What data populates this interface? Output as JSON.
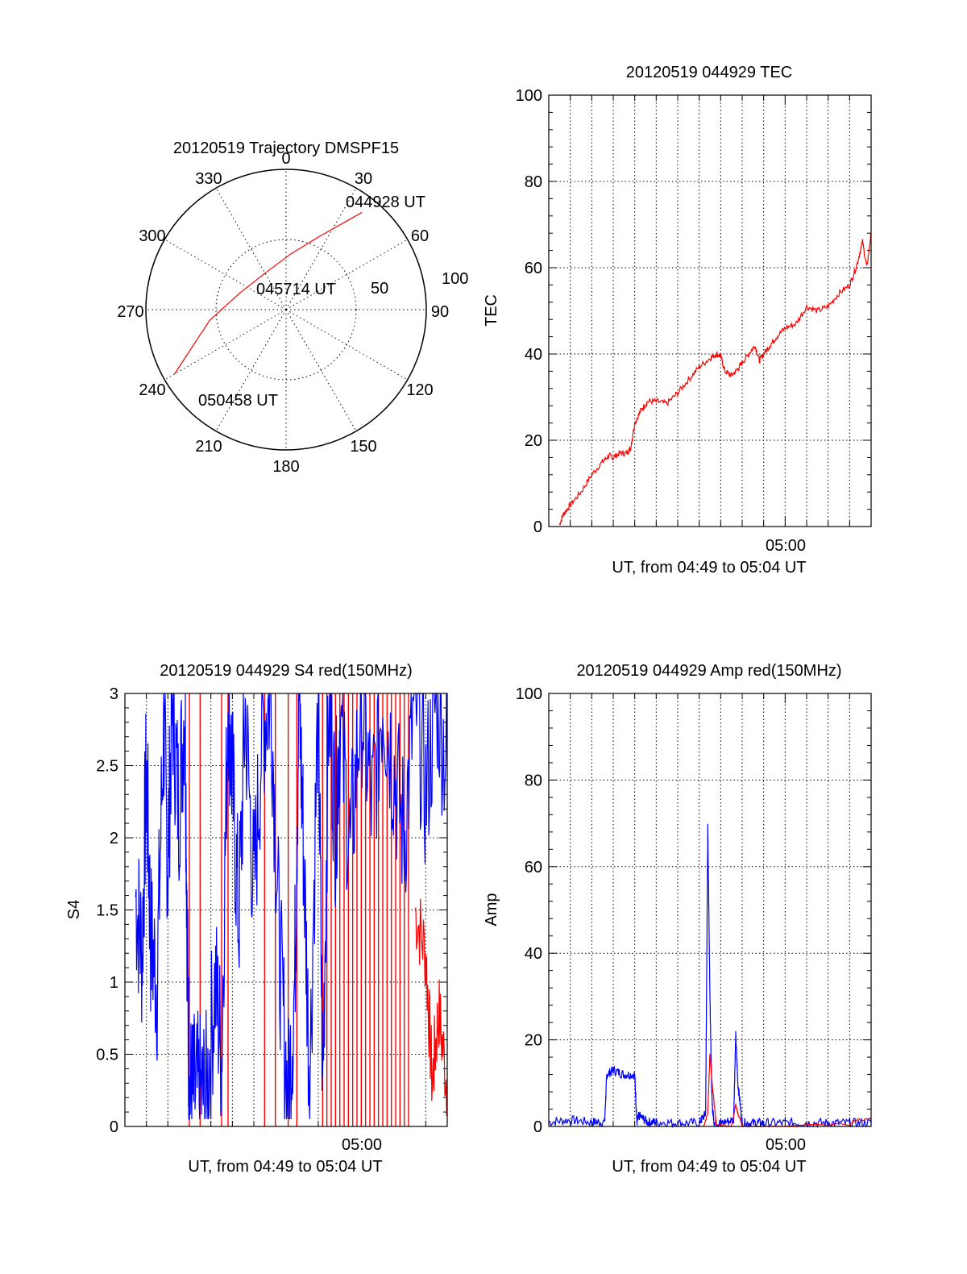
{
  "colors": {
    "red": "#ff0000",
    "blue": "#0000ff",
    "axis": "#000000",
    "grid": "#000000"
  },
  "polar": {
    "title": "20120519 Trajectory DMSPF15",
    "angle_labels": [
      "0",
      "30",
      "60",
      "90",
      "120",
      "150",
      "180",
      "210",
      "240",
      "270",
      "300",
      "330"
    ],
    "ring_labels": [
      "50",
      "100"
    ],
    "start_time": "044928 UT",
    "mid_time": "045714 UT",
    "end_time": "050458 UT",
    "chart_data": {
      "type": "polar-trajectory",
      "r_max": 100,
      "points": [
        {
          "az": 38,
          "r": 88
        },
        {
          "az": 25,
          "r": 58
        },
        {
          "az": 5,
          "r": 40
        },
        {
          "az": 330,
          "r": 30
        },
        {
          "az": 290,
          "r": 35
        },
        {
          "az": 262,
          "r": 55
        },
        {
          "az": 240,
          "r": 92
        }
      ]
    }
  },
  "tec": {
    "title": "20120519 044929 TEC",
    "ylabel": "TEC",
    "xlabel": "UT, from 04:49 to 05:04 UT",
    "xtick_label": "05:00",
    "chart_data": {
      "type": "line",
      "x_unit": "minutes after 04:49 UT",
      "xlim": [
        0,
        15
      ],
      "ylim": [
        0,
        100
      ],
      "yticks": [
        0,
        20,
        40,
        60,
        80,
        100
      ],
      "series": [
        {
          "color": "red",
          "x": [
            0.5,
            0.7,
            1.0,
            1.5,
            2.0,
            2.5,
            2.8,
            3.0,
            3.3,
            3.6,
            3.8,
            4.0,
            4.3,
            4.6,
            5.0,
            5.5,
            6.0,
            6.5,
            7.0,
            7.5,
            7.8,
            8.0,
            8.2,
            8.5,
            8.8,
            9.0,
            9.3,
            9.6,
            9.8,
            10.0,
            10.3,
            10.6,
            11.0,
            11.5,
            12.0,
            12.5,
            13.0,
            13.5,
            14.0,
            14.3,
            14.6,
            14.8,
            15.0
          ],
          "y": [
            0.5,
            3,
            5,
            8,
            12,
            15,
            16.5,
            16,
            17,
            17,
            18,
            24,
            27,
            29,
            29,
            28.5,
            31,
            34,
            37,
            39,
            40,
            39.5,
            36,
            35,
            36.5,
            38,
            40,
            42,
            38.5,
            40,
            42,
            44,
            46,
            47,
            51,
            50,
            51,
            54,
            56,
            60,
            66,
            60,
            68
          ]
        }
      ]
    }
  },
  "s4": {
    "title": "20120519 044929 S4 red(150MHz)",
    "ylabel": "S4",
    "xlabel": "UT, from 04:49 to 05:04 UT",
    "xtick_label": "05:00",
    "yticks": [
      "0",
      "0.5",
      "1",
      "1.5",
      "2",
      "2.5",
      "3"
    ],
    "chart_data": {
      "type": "line",
      "x_unit": "minutes after 04:49 UT",
      "xlim": [
        0,
        15
      ],
      "ylim": [
        0,
        3
      ],
      "series": [
        {
          "color": "blue",
          "x": [
            0.5,
            0.8,
            1.0,
            1.2,
            1.5,
            1.8,
            2.0,
            2.2,
            2.5,
            2.8,
            2.9,
            3.0,
            3.2,
            3.5,
            3.8,
            4.2,
            4.5,
            4.8,
            5.0,
            5.3,
            5.6,
            6.0,
            6.4,
            6.8,
            7.2,
            7.6,
            7.9,
            8.1,
            8.3,
            8.6,
            9.0,
            9.2,
            9.5,
            9.8,
            10.0,
            10.5,
            11.0,
            11.5,
            12.0,
            12.5,
            13.0,
            13.5,
            14.0,
            14.5,
            15.0
          ],
          "y": [
            1.6,
            1.2,
            2.5,
            1.3,
            1.0,
            2.8,
            1.8,
            3.0,
            2.2,
            3.0,
            1.2,
            0.23,
            0.22,
            0.21,
            0.22,
            1.0,
            0.5,
            3.0,
            2.4,
            1.4,
            2.9,
            1.6,
            2.8,
            3.0,
            1.2,
            0.15,
            1.0,
            3.0,
            2.0,
            0.3,
            3.0,
            0.25,
            3.0,
            2.1,
            2.8,
            1.9,
            3.0,
            2.2,
            3.0,
            2.5,
            2.0,
            3.0,
            2.3,
            3.0,
            2.5
          ]
        },
        {
          "color": "red",
          "x": [
            3.0,
            3.5,
            4.5,
            4.8,
            6.5,
            7.0,
            7.6,
            8.0,
            9.2,
            9.4,
            9.6,
            9.8,
            10.0,
            10.2,
            10.4,
            10.6,
            10.8,
            11.0,
            11.2,
            11.4,
            11.6,
            11.8,
            12.0,
            12.2,
            12.4,
            12.6,
            12.8,
            13.0,
            13.2,
            13.5,
            14.0,
            14.3,
            14.6,
            15.0
          ],
          "y": [
            0,
            0,
            0,
            0,
            0,
            0,
            0.15,
            0,
            0,
            0,
            0,
            0,
            0,
            0,
            0,
            0,
            0,
            0,
            0,
            0,
            0,
            0,
            0,
            0,
            0,
            0,
            0,
            0,
            0,
            1.5,
            1.2,
            0.3,
            0.8,
            0.28
          ],
          "spikes_to_top_x": [
            3.0,
            3.5,
            4.5,
            4.8,
            6.5,
            7.0,
            7.6,
            8.0,
            9.2,
            9.4,
            9.6,
            9.8,
            10.0,
            10.2,
            10.4,
            10.6,
            10.8,
            11.0,
            11.2,
            11.4,
            11.6,
            11.8,
            12.0,
            12.2,
            12.4,
            12.6,
            12.8,
            13.0,
            13.2
          ]
        }
      ]
    }
  },
  "amp": {
    "title": "20120519 044929 Amp red(150MHz)",
    "ylabel": "Amp",
    "xlabel": "UT, from 04:49 to 05:04 UT",
    "xtick_label": "05:00",
    "chart_data": {
      "type": "line",
      "x_unit": "minutes after 04:49 UT",
      "xlim": [
        0,
        15
      ],
      "ylim": [
        0,
        100
      ],
      "yticks": [
        0,
        20,
        40,
        60,
        80,
        100
      ],
      "series": [
        {
          "color": "blue",
          "x": [
            0,
            1,
            2,
            2.6,
            2.7,
            3.0,
            3.5,
            4.0,
            4.1,
            4.2,
            4.6,
            5,
            6,
            7.0,
            7.3,
            7.4,
            7.5,
            7.6,
            7.7,
            8.0,
            8.6,
            8.7,
            8.8,
            9.0,
            9.5,
            10,
            11,
            12,
            13,
            14,
            15
          ],
          "y": [
            1,
            1.5,
            1,
            1,
            12,
            13,
            12,
            12,
            1,
            2.5,
            1,
            1,
            0.8,
            0.8,
            3,
            69,
            30,
            5,
            0.8,
            0.8,
            1.5,
            21,
            10,
            0.8,
            0.8,
            0.8,
            0.8,
            0.8,
            0.8,
            0.8,
            0.8
          ]
        },
        {
          "color": "red",
          "x": [
            7.2,
            7.4,
            7.5,
            7.6,
            7.8,
            8.5,
            8.7,
            8.8,
            9.0,
            14.0,
            14.3,
            15.0
          ],
          "y": [
            0,
            3,
            17,
            10,
            0.5,
            0,
            5,
            3,
            0,
            0.5,
            1.5,
            1.7
          ]
        }
      ]
    }
  }
}
